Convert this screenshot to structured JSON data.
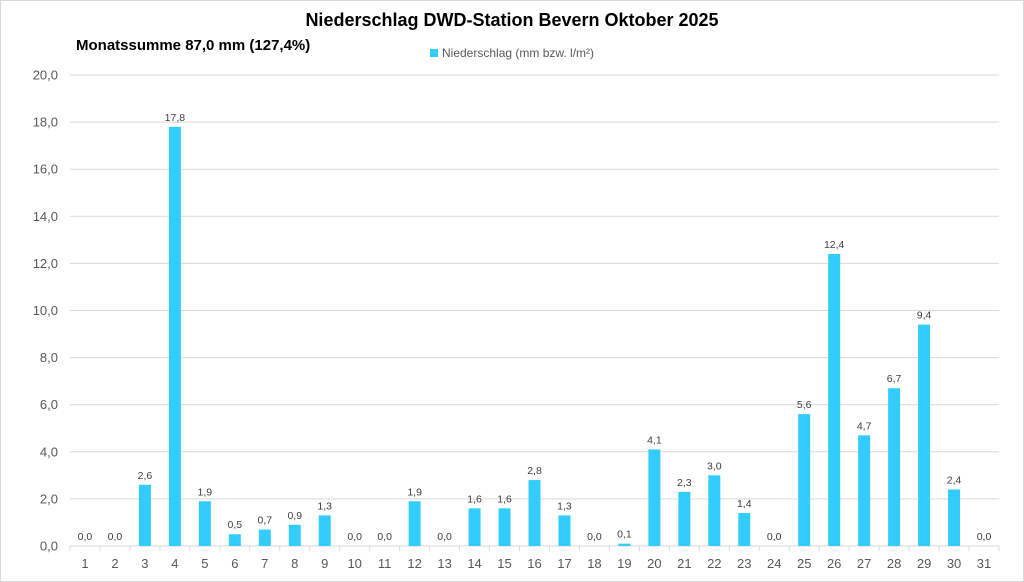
{
  "chart_data": {
    "type": "bar",
    "title": "Niederschlag DWD-Station Bevern Oktober 2025",
    "subtitle": "Monatssumme 87,0 mm (127,4%)",
    "legend": [
      {
        "name": "Niederschlag (mm bzw. l/m²)",
        "color": "#33ccff"
      }
    ],
    "legend_position": "top-center",
    "xlabel": "",
    "ylabel": "",
    "ylim": [
      0,
      20
    ],
    "grid": true,
    "y_ticks": [
      "0,0",
      "2,0",
      "4,0",
      "6,0",
      "8,0",
      "10,0",
      "12,0",
      "14,0",
      "16,0",
      "18,0",
      "20,0"
    ],
    "categories": [
      "1",
      "2",
      "3",
      "4",
      "5",
      "6",
      "7",
      "8",
      "9",
      "10",
      "11",
      "12",
      "13",
      "14",
      "15",
      "16",
      "17",
      "18",
      "19",
      "20",
      "21",
      "22",
      "23",
      "24",
      "25",
      "26",
      "27",
      "28",
      "29",
      "30",
      "31"
    ],
    "series": [
      {
        "name": "Niederschlag (mm bzw. l/m²)",
        "color": "#33ccff",
        "values": [
          0.0,
          0.0,
          2.6,
          17.8,
          1.9,
          0.5,
          0.7,
          0.9,
          1.3,
          0.0,
          0.0,
          1.9,
          0.0,
          1.6,
          1.6,
          2.8,
          1.3,
          0.0,
          0.1,
          4.1,
          2.3,
          3.0,
          1.4,
          0.0,
          5.6,
          12.4,
          4.7,
          6.7,
          9.4,
          2.4,
          0.0
        ],
        "labels": [
          "0,0",
          "0,0",
          "2,6",
          "17,8",
          "1,9",
          "0,5",
          "0,7",
          "0,9",
          "1,3",
          "0,0",
          "0,0",
          "1,9",
          "0,0",
          "1,6",
          "1,6",
          "2,8",
          "1,3",
          "0,0",
          "0,1",
          "4,1",
          "2,3",
          "3,0",
          "1,4",
          "0,0",
          "5,6",
          "12,4",
          "4,7",
          "6,7",
          "9,4",
          "2,4",
          "0,0"
        ]
      }
    ]
  }
}
